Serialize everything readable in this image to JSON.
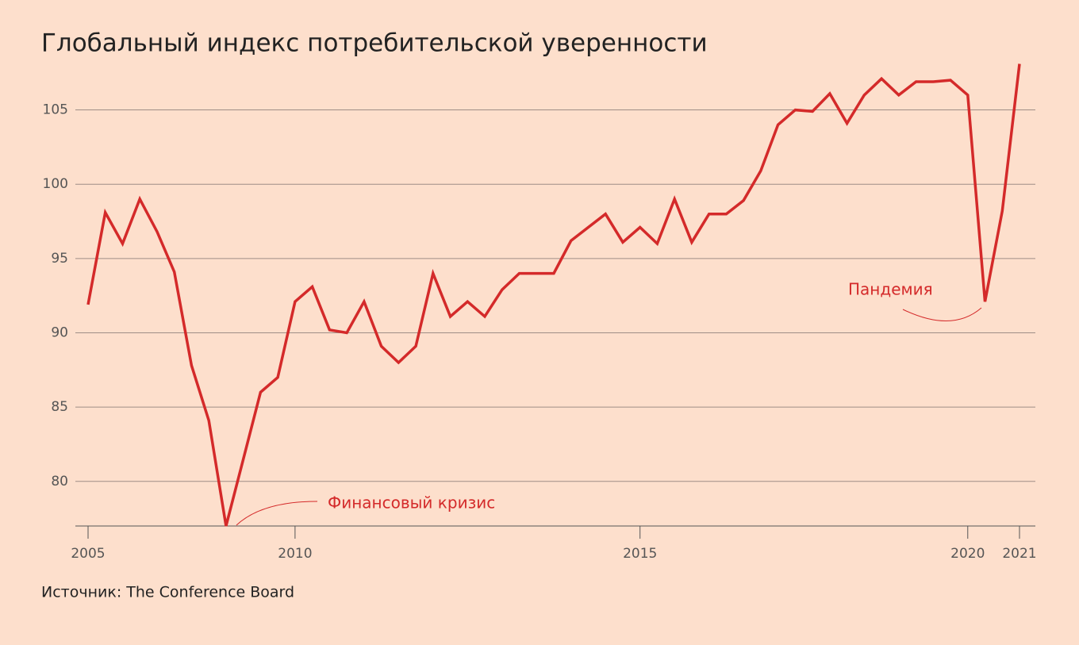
{
  "chart_data": {
    "type": "line",
    "title": "Глобальный индекс потребительской уверенности",
    "source": "Источник: The Conference Board",
    "annotations": [
      "Финансовый кризис",
      "Пандемия"
    ],
    "categories": [
      "2005",
      null,
      null,
      null,
      null,
      null,
      null,
      null,
      null,
      null,
      null,
      null,
      "2010",
      null,
      null,
      null,
      null,
      null,
      null,
      null,
      null,
      null,
      null,
      null,
      null,
      null,
      null,
      null,
      null,
      null,
      null,
      null,
      "2015",
      null,
      null,
      null,
      null,
      null,
      null,
      null,
      null,
      null,
      null,
      null,
      null,
      null,
      null,
      null,
      null,
      null,
      null,
      "2020",
      null,
      null,
      "2021"
    ],
    "series": [
      {
        "name": "Глобальный индекс потребительской уверенности",
        "color": "#d42a2a",
        "values": [
          91.9,
          98.1,
          96.0,
          99.0,
          96.8,
          94.1,
          87.8,
          84.1,
          77.0,
          81.5,
          86.0,
          87.0,
          92.1,
          93.1,
          90.2,
          90.0,
          92.1,
          89.1,
          88.0,
          89.1,
          94.0,
          91.1,
          92.1,
          91.1,
          92.9,
          94.0,
          94.0,
          94.0,
          96.2,
          97.1,
          98.0,
          96.1,
          97.1,
          96.0,
          99.0,
          96.1,
          98.0,
          98.0,
          98.9,
          100.9,
          104.0,
          105.0,
          104.9,
          106.1,
          104.1,
          106.0,
          107.1,
          106.0,
          106.9,
          106.9,
          107.0,
          106.0,
          92.1,
          98.2,
          108.1
        ]
      }
    ],
    "ylim": [
      77,
      108.5
    ],
    "yticks": [
      80,
      85,
      90,
      95,
      100,
      105
    ],
    "grid": true
  }
}
